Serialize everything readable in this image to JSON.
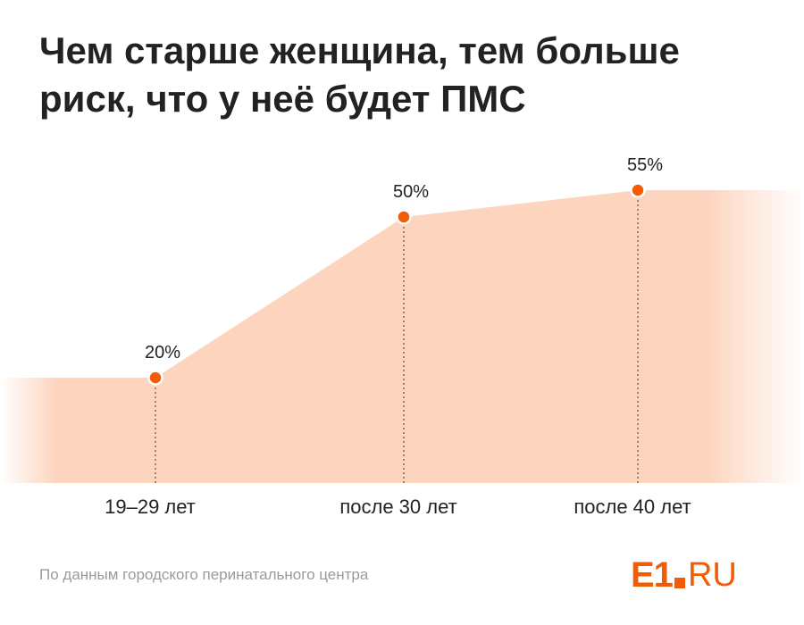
{
  "title_lines": [
    "Чем старше женщина, тем больше",
    "риск, что у неё будет ПМС"
  ],
  "source": "По данным городского перинатального центра",
  "logo": {
    "e1": "E1",
    "ru": "RU"
  },
  "colors": {
    "area": "#fdd5bf",
    "point": "#f25c05",
    "title": "#222222",
    "source": "#9a9a9a",
    "brand": "#f25c05"
  },
  "chart_data": {
    "type": "area",
    "categories": [
      "19–29 лет",
      "после 30 лет",
      "после 40 лет"
    ],
    "values": [
      20,
      50,
      55
    ],
    "data_labels": [
      "20%",
      "50%",
      "55%"
    ],
    "ylim": [
      0,
      65
    ],
    "grid": false,
    "legend": "none",
    "xlabel": "",
    "ylabel": ""
  }
}
